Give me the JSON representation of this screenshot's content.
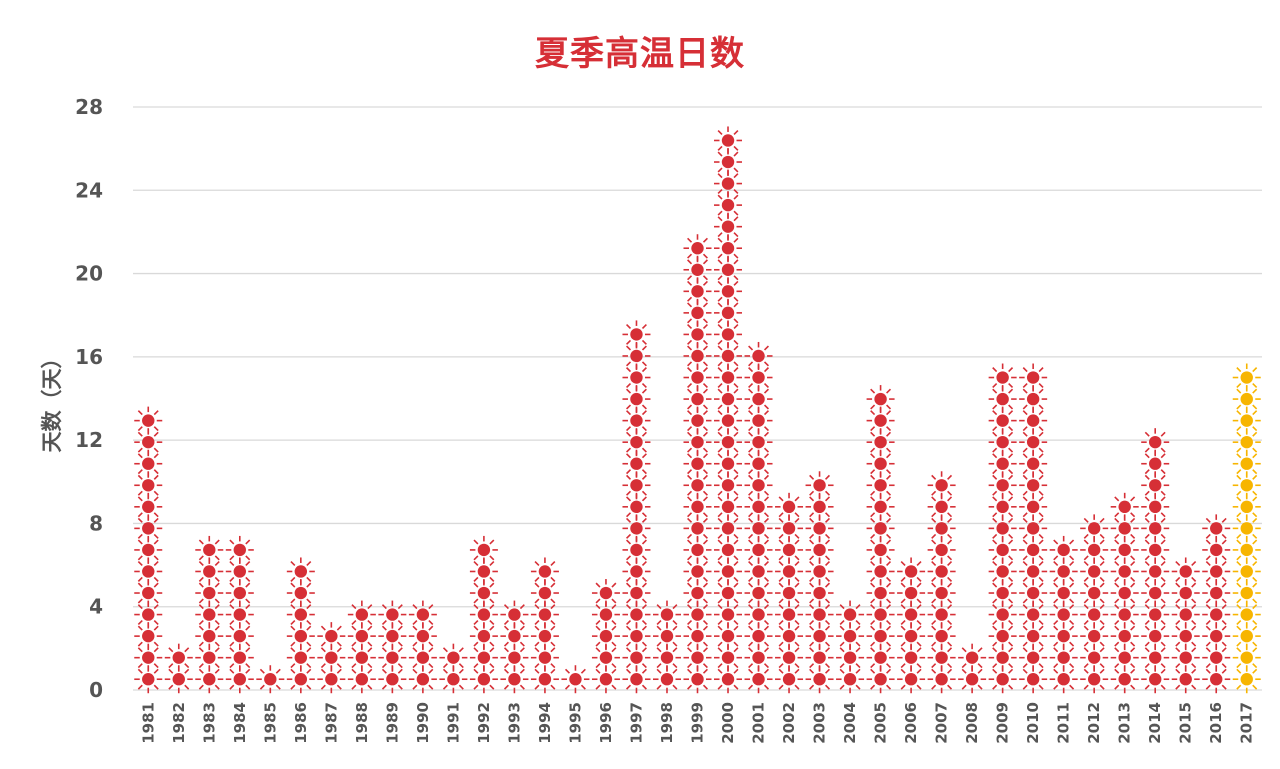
{
  "chart_data": {
    "type": "bar",
    "title": "夏季高温日数",
    "xlabel": "",
    "ylabel": "天数（天）",
    "ylim": [
      0,
      28
    ],
    "yticks": [
      0,
      4,
      8,
      12,
      16,
      20,
      24,
      28
    ],
    "grid": true,
    "categories": [
      "1981",
      "1982",
      "1983",
      "1984",
      "1985",
      "1986",
      "1987",
      "1988",
      "1989",
      "1990",
      "1991",
      "1992",
      "1993",
      "1994",
      "1995",
      "1996",
      "1997",
      "1998",
      "1999",
      "2000",
      "2001",
      "2002",
      "2003",
      "2004",
      "2005",
      "2006",
      "2007",
      "2008",
      "2009",
      "2010",
      "2011",
      "2012",
      "2013",
      "2014",
      "2015",
      "2016",
      "2017"
    ],
    "values": [
      13,
      2,
      7,
      7,
      1,
      6,
      3,
      4,
      4,
      4,
      2,
      7,
      4,
      6,
      1,
      5,
      17,
      4,
      21,
      26,
      16,
      9,
      10,
      4,
      14,
      6,
      10,
      2,
      15,
      15,
      7,
      8,
      9,
      12,
      6,
      8,
      15
    ],
    "colors": {
      "default": "#d62f36",
      "highlight": "#f7b500",
      "title": "#d62f36"
    },
    "highlight_category": "2017"
  }
}
